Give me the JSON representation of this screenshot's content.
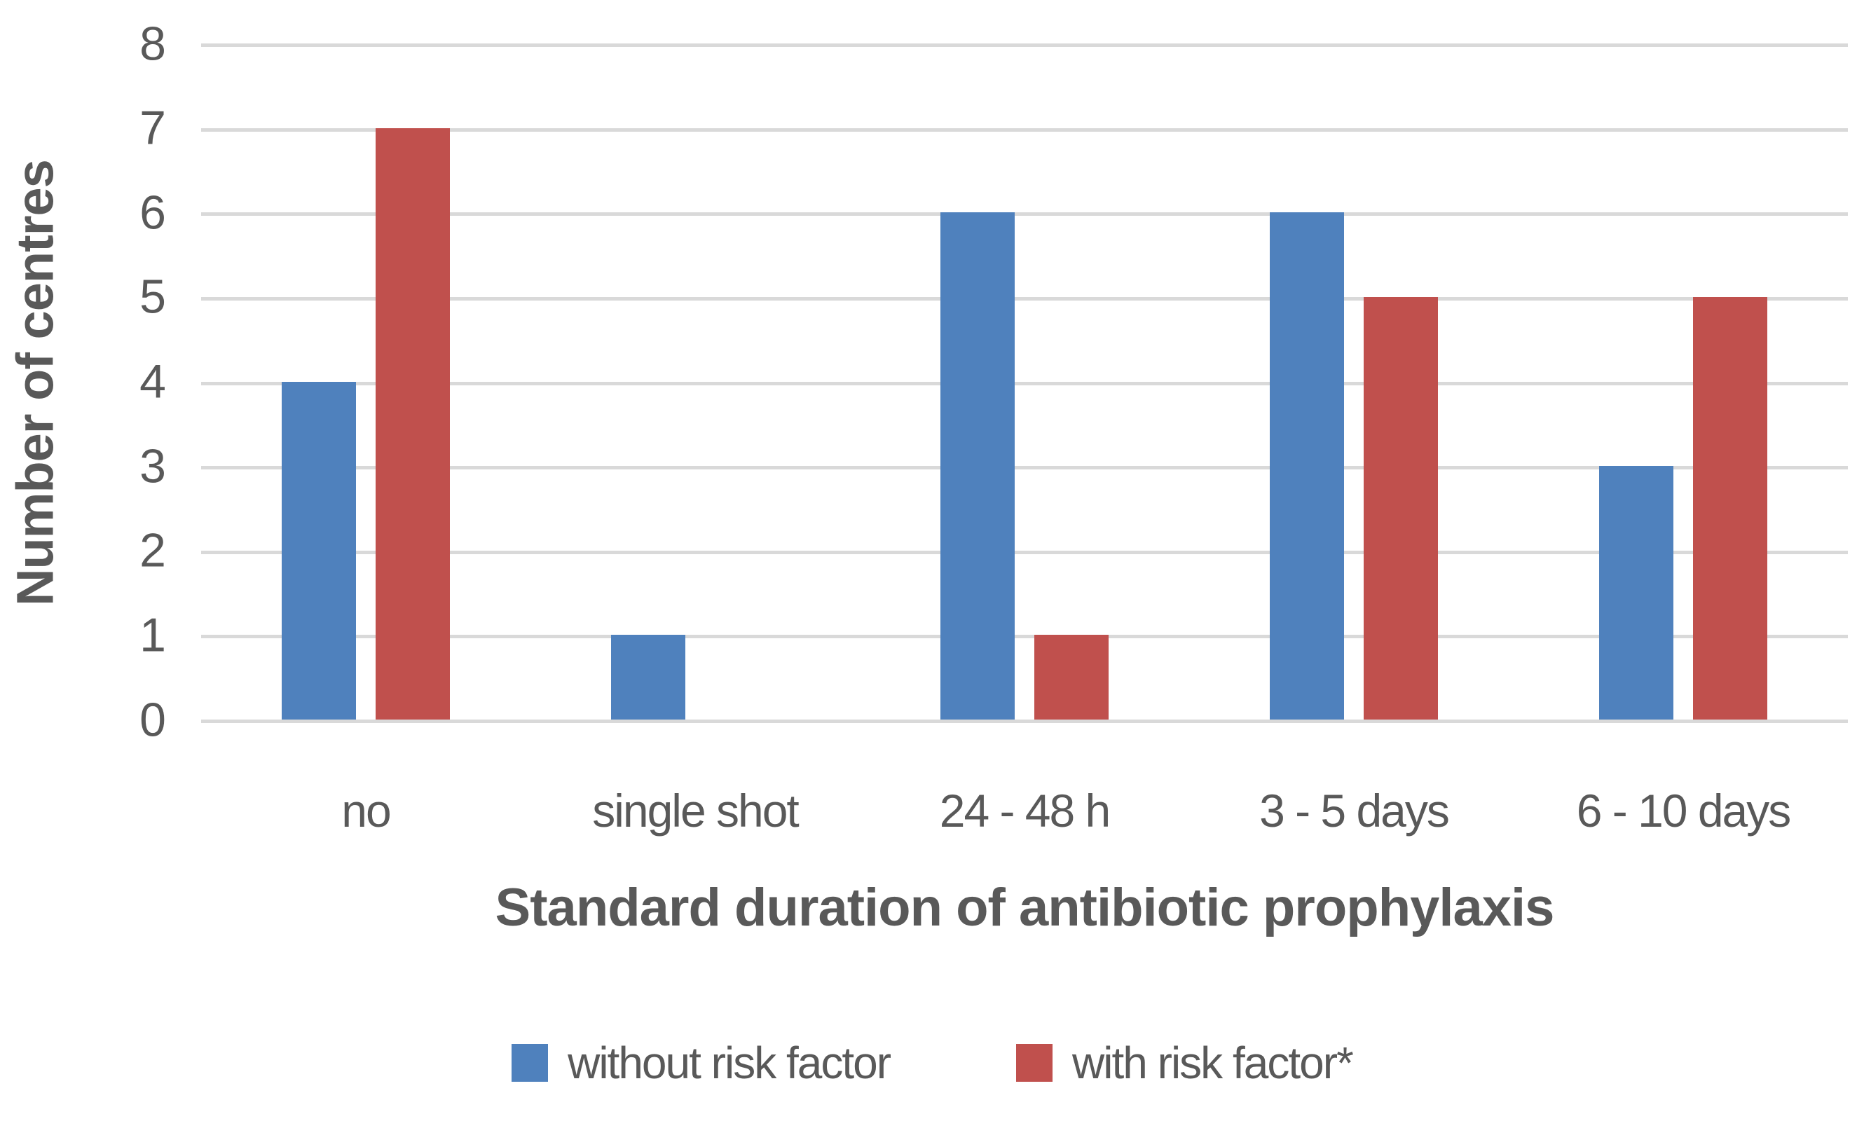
{
  "chart_data": {
    "type": "bar",
    "categories": [
      "no",
      "single shot",
      "24 - 48 h",
      "3 - 5 days",
      "6 - 10 days"
    ],
    "series": [
      {
        "name": "without risk factor",
        "color": "#4F81BD",
        "values": [
          4,
          1,
          6,
          6,
          3
        ]
      },
      {
        "name": "with risk factor*",
        "color": "#C0504D",
        "values": [
          7,
          0,
          1,
          5,
          5
        ]
      }
    ],
    "title": "",
    "xlabel": "Standard duration of antibiotic prophylaxis",
    "ylabel": "Number of centres",
    "ylim": [
      0,
      8
    ],
    "ytick_step": 1,
    "yticks": [
      0,
      1,
      2,
      3,
      4,
      5,
      6,
      7,
      8
    ],
    "grid": true,
    "gridline_color": "#D9D9D9",
    "text_color": "#595959",
    "background_color": "#FFFFFF",
    "legend_position": "bottom"
  }
}
